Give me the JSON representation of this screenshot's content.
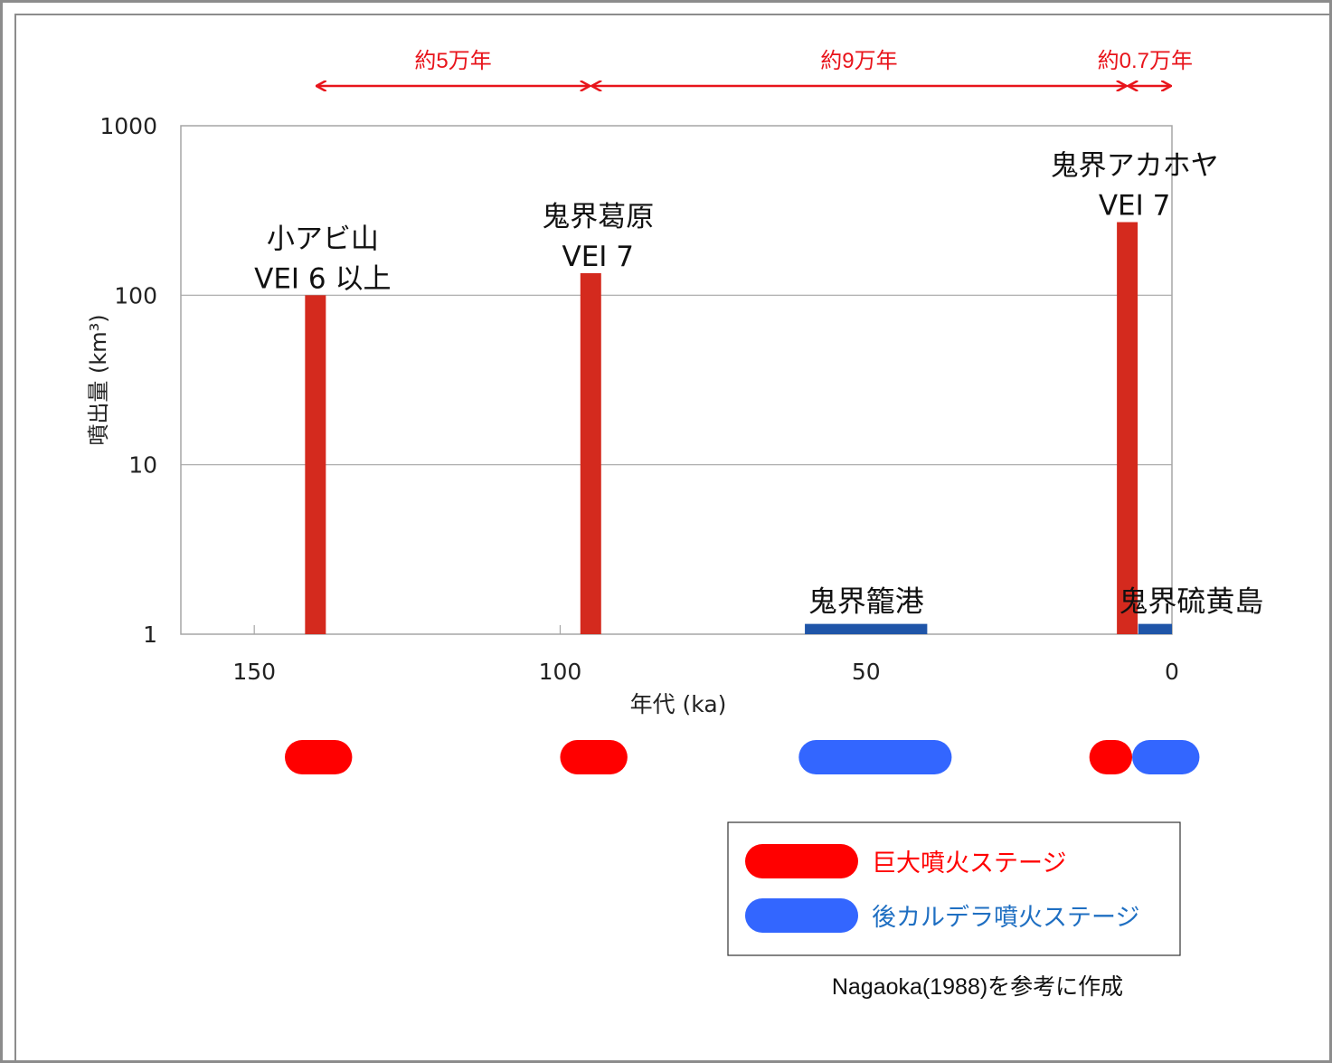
{
  "chart_data": {
    "type": "bar",
    "xlabel": "年代 (ka)",
    "ylabel": "噴出量 (km³)",
    "xlim": [
      162,
      0
    ],
    "ylim": [
      1,
      1000
    ],
    "y_scale": "log",
    "x_ticks": [
      {
        "value": 150,
        "label": "150"
      },
      {
        "value": 100,
        "label": "100"
      },
      {
        "value": 50,
        "label": "50"
      },
      {
        "value": 0,
        "label": "0"
      }
    ],
    "y_ticks": [
      {
        "value": 1000,
        "label": "1000"
      },
      {
        "value": 100,
        "label": "100"
      },
      {
        "value": 10,
        "label": "10"
      },
      {
        "value": 1,
        "label": "1"
      }
    ],
    "grid": true,
    "eruptions": [
      {
        "name": "小アビ山",
        "vei": "VEI 6 以上",
        "age": 140,
        "volume": 100,
        "stage": "giant"
      },
      {
        "name": "鬼界葛原",
        "vei": "VEI 7",
        "age": 95,
        "volume": 135,
        "stage": "giant"
      },
      {
        "name": "鬼界籠港",
        "vei": "",
        "age_start": 60,
        "age_end": 40,
        "volume": 1.15,
        "stage": "post"
      },
      {
        "name": "鬼界アカホヤ",
        "vei": "VEI 7",
        "age": 7.3,
        "volume": 270,
        "stage": "giant"
      },
      {
        "name": "鬼界硫黄島",
        "vei": "",
        "age_start": 5.5,
        "age_end": 0,
        "volume": 1.15,
        "stage": "post"
      }
    ],
    "intervals": [
      {
        "label": "約5万年",
        "from": 140,
        "to": 95
      },
      {
        "label": "約9万年",
        "from": 95,
        "to": 7.3
      },
      {
        "label": "約0.7万年",
        "from": 7.3,
        "to": 0
      }
    ],
    "stage_pills": [
      {
        "stage": "giant",
        "from": 145,
        "to": 134
      },
      {
        "stage": "giant",
        "from": 100,
        "to": 89
      },
      {
        "stage": "post",
        "from": 61,
        "to": 36
      },
      {
        "stage": "giant",
        "from": 13.5,
        "to": 6.5
      },
      {
        "stage": "post",
        "from": 6.5,
        "to": -4.5
      }
    ],
    "legend": {
      "position": "bottom-right",
      "entries": [
        {
          "stage": "giant",
          "label": "巨大噴火ステージ"
        },
        {
          "stage": "post",
          "label": "後カルデラ噴火ステージ"
        }
      ]
    },
    "source_note": "Nagaoka(1988)を参考に作成",
    "colors": {
      "bar_red": "#d42a1e",
      "bar_blue": "#1f55a8",
      "pill_red": "#ff0000",
      "pill_blue": "#3366ff",
      "legend_red_text": "#ff0000",
      "legend_blue_text": "#1f6fc2",
      "arrow": "#e8141b"
    }
  }
}
